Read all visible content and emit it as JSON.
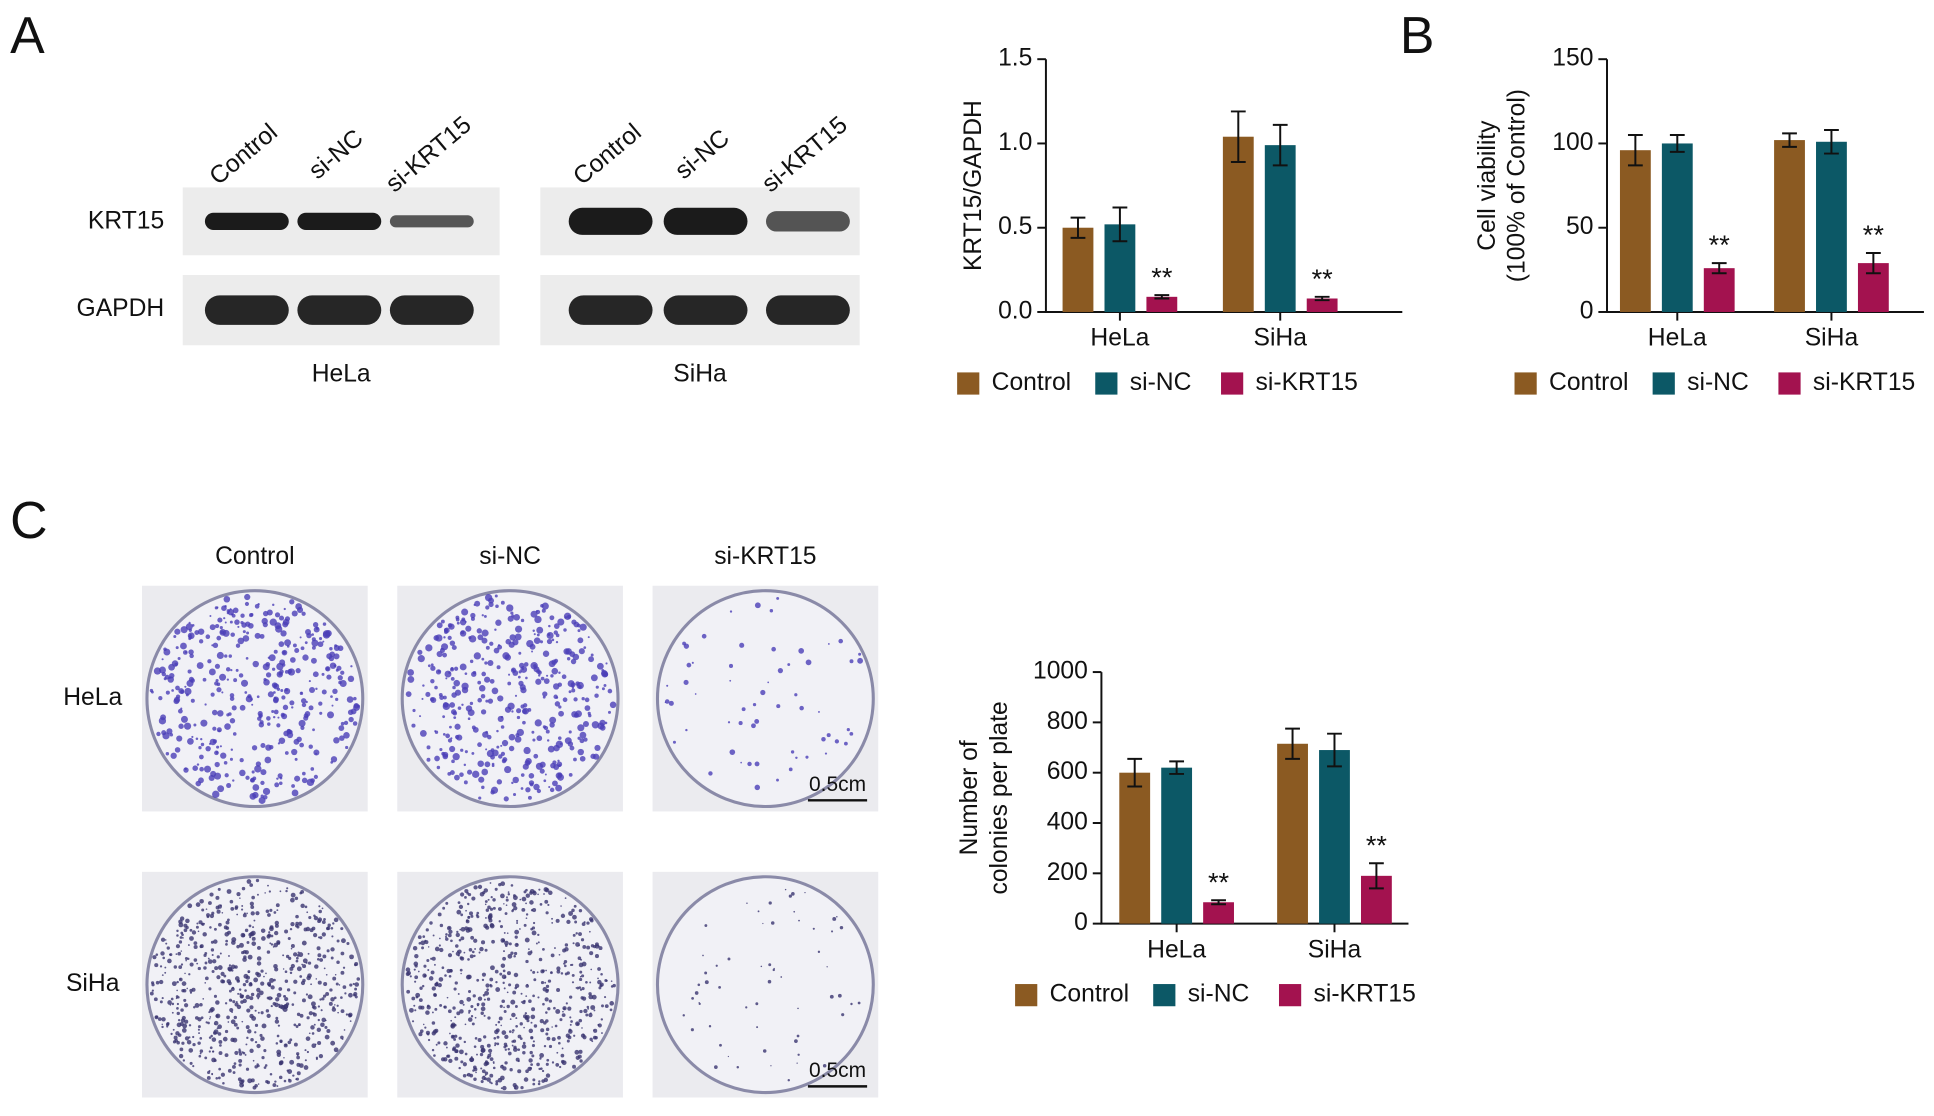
{
  "panels": {
    "a": {
      "label": "A",
      "row_labels": [
        "KRT15",
        "GAPDH"
      ],
      "blots": [
        {
          "cell_line": "HeLa",
          "lanes": [
            "Control",
            "si-NC",
            "si-KRT15"
          ]
        },
        {
          "cell_line": "SiHa",
          "lanes": [
            "Control",
            "si-NC",
            "si-KRT15"
          ]
        }
      ]
    },
    "b": {
      "label": "B"
    },
    "c": {
      "label": "C",
      "columns": [
        "Control",
        "si-NC",
        "si-KRT15"
      ],
      "rows": [
        "HeLa",
        "SiHa"
      ],
      "scale_bar": "0.5cm"
    }
  },
  "chart_data": [
    {
      "type": "bar",
      "y_label": [
        "KRT15/GAPDH"
      ],
      "categories": [
        "HeLa",
        "SiHa"
      ],
      "ylim": [
        0,
        1.5
      ],
      "yticks": [
        {
          "value": 0,
          "label": "0.0"
        },
        0.5,
        {
          "value": 1,
          "label": "1.0"
        },
        1.5
      ],
      "series": [
        {
          "name": "Control",
          "color": "#8b5a22",
          "values": [
            0.5,
            1.04
          ],
          "errors": [
            0.06,
            0.15
          ]
        },
        {
          "name": "si-NC",
          "color": "#0c5866",
          "values": [
            0.52,
            0.99
          ],
          "errors": [
            0.1,
            0.12
          ]
        },
        {
          "name": "si-KRT15",
          "color": "#a3124f",
          "values": [
            0.09,
            0.08
          ],
          "errors": [
            0.01,
            0.01
          ],
          "significance": [
            "**",
            "**"
          ]
        }
      ]
    },
    {
      "type": "bar",
      "y_label": [
        "Cell viability",
        "(100% of Control)"
      ],
      "categories": [
        "HeLa",
        "SiHa"
      ],
      "ylim": [
        0,
        150
      ],
      "yticks": [
        0,
        50,
        100,
        150
      ],
      "series": [
        {
          "name": "Control",
          "color": "#8b5a22",
          "values": [
            96,
            102
          ],
          "errors": [
            9,
            4
          ]
        },
        {
          "name": "si-NC",
          "color": "#0c5866",
          "values": [
            100,
            101
          ],
          "errors": [
            5,
            7
          ]
        },
        {
          "name": "si-KRT15",
          "color": "#a3124f",
          "values": [
            26,
            29
          ],
          "errors": [
            3,
            6
          ],
          "significance": [
            "**",
            "**"
          ]
        }
      ]
    },
    {
      "type": "bar",
      "y_label": [
        "Number of",
        "colonies per plate"
      ],
      "categories": [
        "HeLa",
        "SiHa"
      ],
      "ylim": [
        0,
        1000
      ],
      "yticks": [
        0,
        200,
        400,
        600,
        800,
        1000
      ],
      "series": [
        {
          "name": "Control",
          "color": "#8b5a22",
          "values": [
            600,
            715
          ],
          "errors": [
            55,
            60
          ]
        },
        {
          "name": "si-NC",
          "color": "#0c5866",
          "values": [
            620,
            690
          ],
          "errors": [
            25,
            65
          ]
        },
        {
          "name": "si-KRT15",
          "color": "#a3124f",
          "values": [
            85,
            190
          ],
          "errors": [
            8,
            50
          ],
          "significance": [
            "**",
            "**"
          ]
        }
      ]
    }
  ]
}
